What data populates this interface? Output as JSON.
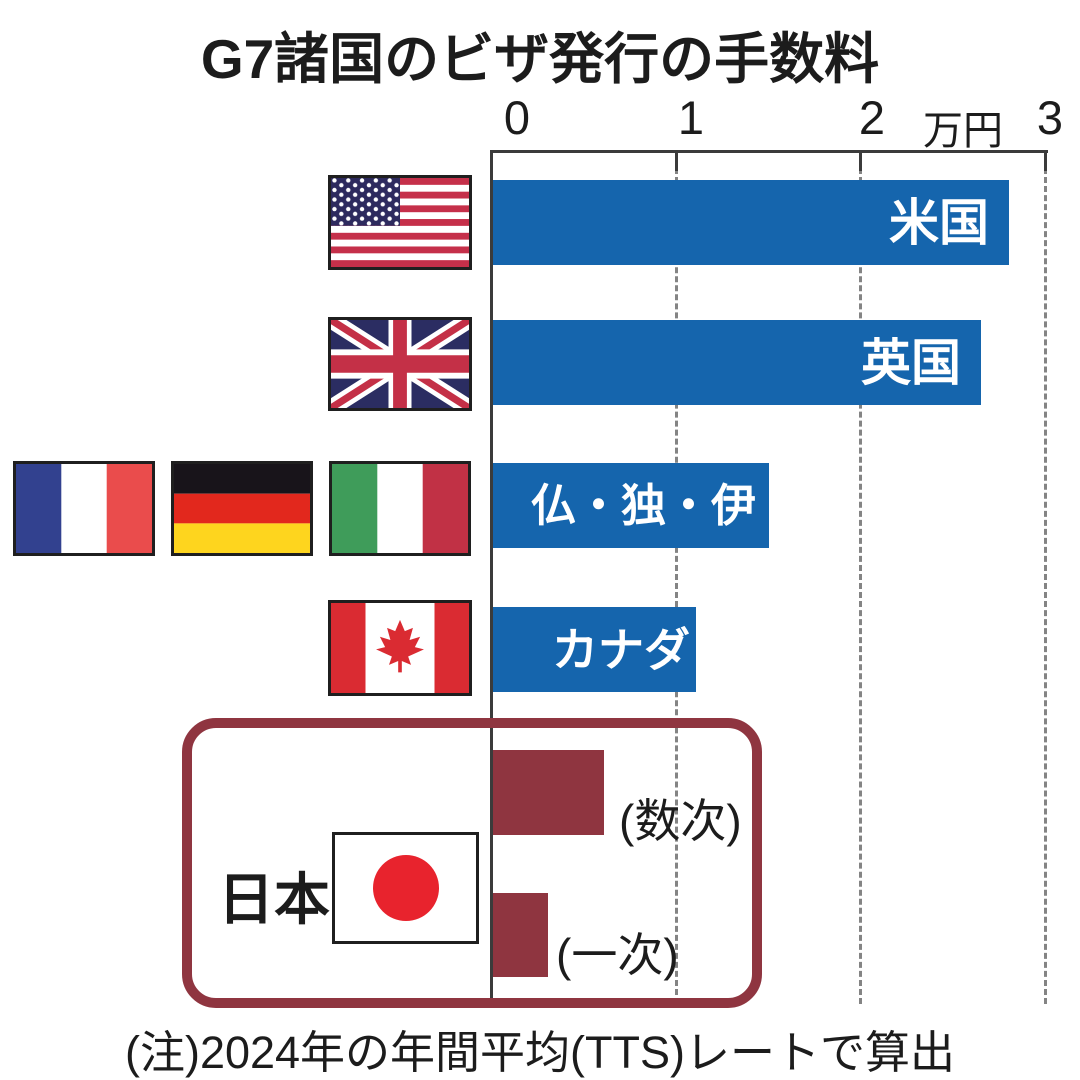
{
  "title": "G7諸国のビザ発行の手数料",
  "axis": {
    "tick_labels": [
      "0",
      "1",
      "2",
      "3"
    ],
    "unit": "万円"
  },
  "rows": {
    "usa": {
      "label": "米国"
    },
    "uk": {
      "label": "英国"
    },
    "fdi": {
      "label": "仏・独・伊"
    },
    "canada": {
      "label": "カナダ"
    },
    "japan_multiple": {
      "label": "(数次)"
    },
    "japan_single": {
      "label": "(一次)"
    }
  },
  "japan_group_label": "日本",
  "note": "(注)2024年の年間平均(TTS)レートで算出",
  "colors": {
    "bar_blue": "#1565ad",
    "japan_red": "#8f3540",
    "grid_gray": "#848484",
    "axis_dark": "#3b3b3b"
  },
  "chart_data": {
    "type": "bar",
    "orientation": "horizontal",
    "title": "G7諸国のビザ発行の手数料",
    "xlabel": "万円",
    "xlim": [
      0,
      3
    ],
    "x_ticks": [
      0,
      1,
      2,
      3
    ],
    "grid": "dashed-vertical",
    "categories": [
      "米国",
      "英国",
      "仏・独・伊",
      "カナダ",
      "日本(数次)",
      "日本(一次)"
    ],
    "values": [
      2.8,
      2.65,
      1.5,
      1.1,
      0.6,
      0.3
    ],
    "colors": [
      "#1565ad",
      "#1565ad",
      "#1565ad",
      "#1565ad",
      "#8f3540",
      "#8f3540"
    ],
    "note": "(注)2024年の年間平均(TTS)レートで算出"
  }
}
